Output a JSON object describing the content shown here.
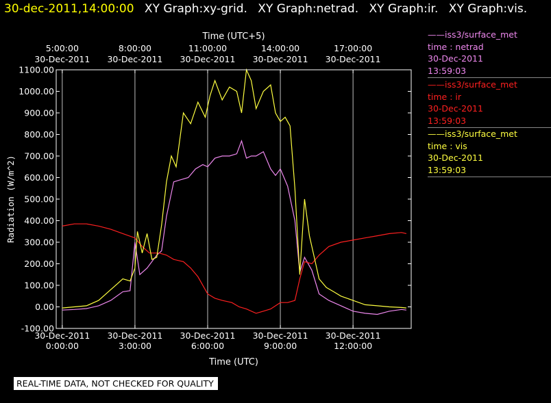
{
  "header": {
    "datetime": "30-dec-2011,14:00:00",
    "graphs": [
      "XY Graph:xy-grid.",
      "XY Graph:netrad.",
      "XY Graph:ir.",
      "XY Graph:vis."
    ]
  },
  "footer": {
    "notice": "REAL-TIME DATA, NOT CHECKED FOR QUALITY"
  },
  "legend": [
    {
      "name": "iss3/surface_met",
      "field": "time : netrad",
      "date": "30-Dec-2011",
      "time": "13:59:03",
      "color": "#ee88ee"
    },
    {
      "name": "iss3/surface_met",
      "field": "time : ir",
      "date": "30-Dec-2011",
      "time": "13:59:03",
      "color": "#ff2020"
    },
    {
      "name": "iss3/surface_met",
      "field": "time : vis",
      "date": "30-Dec-2011",
      "time": "13:59:03",
      "color": "#ffff40"
    }
  ],
  "colors": {
    "header_datetime": "#ffff00",
    "header_text": "#ffffff",
    "axis": "#ffffff",
    "grid": "#c0c0c0"
  },
  "chart_data": {
    "type": "line",
    "xlabel": "Time (UTC)",
    "x2label": "Time (UTC+5)",
    "ylabel": "Radiation (W/m^2)",
    "xlim": [
      -0.25,
      14.4
    ],
    "ylim": [
      -100,
      1100
    ],
    "yticks": [
      -100,
      0,
      100,
      200,
      300,
      400,
      500,
      600,
      700,
      800,
      900,
      1000,
      1100
    ],
    "ytick_labels": [
      "-100.00",
      "0.00",
      "100.00",
      "200.00",
      "300.00",
      "400.00",
      "500.00",
      "600.00",
      "700.00",
      "800.00",
      "900.00",
      "1000.00",
      "1100.00"
    ],
    "xticks": [
      0,
      3,
      6,
      9,
      12
    ],
    "xtick_labels": [
      [
        "30-Dec-2011",
        "0:00:00"
      ],
      [
        "30-Dec-2011",
        "3:00:00"
      ],
      [
        "30-Dec-2011",
        "6:00:00"
      ],
      [
        "30-Dec-2011",
        "9:00:00"
      ],
      [
        "30-Dec-2011",
        "12:00:00"
      ]
    ],
    "x2tick_labels": [
      [
        "5:00:00",
        "30-Dec-2011"
      ],
      [
        "8:00:00",
        "30-Dec-2011"
      ],
      [
        "11:00:00",
        "30-Dec-2011"
      ],
      [
        "14:00:00",
        "30-Dec-2011"
      ],
      [
        "17:00:00",
        "30-Dec-2011"
      ]
    ],
    "grid": true,
    "legend": "right",
    "series": [
      {
        "name": "time : netrad",
        "color": "#ee88ee",
        "x": [
          0,
          0.5,
          1,
          1.5,
          2,
          2.5,
          2.8,
          3.0,
          3.2,
          3.5,
          3.9,
          4.1,
          4.3,
          4.6,
          4.9,
          5.2,
          5.5,
          5.8,
          6.0,
          6.3,
          6.6,
          6.9,
          7.2,
          7.4,
          7.6,
          7.8,
          8.0,
          8.3,
          8.6,
          8.8,
          9.0,
          9.3,
          9.6,
          9.8,
          10.0,
          10.3,
          10.6,
          11.0,
          11.5,
          12.0,
          12.5,
          13.0,
          13.5,
          14.0,
          14.2
        ],
        "y": [
          -15,
          -12,
          -8,
          5,
          30,
          70,
          75,
          300,
          150,
          180,
          240,
          260,
          420,
          580,
          590,
          600,
          640,
          660,
          650,
          690,
          700,
          700,
          710,
          770,
          690,
          700,
          700,
          720,
          640,
          610,
          640,
          560,
          400,
          160,
          230,
          170,
          60,
          30,
          5,
          -20,
          -30,
          -35,
          -20,
          -12,
          -15
        ]
      },
      {
        "name": "time : ir",
        "color": "#ff2020",
        "x": [
          0,
          0.5,
          1,
          1.5,
          2,
          2.5,
          3.0,
          3.3,
          3.6,
          4.0,
          4.3,
          4.6,
          5.0,
          5.3,
          5.6,
          6.0,
          6.3,
          6.6,
          7.0,
          7.3,
          7.6,
          8.0,
          8.3,
          8.6,
          9.0,
          9.3,
          9.6,
          9.8,
          10.0,
          10.3,
          10.6,
          11.0,
          11.5,
          12.0,
          12.5,
          13.0,
          13.5,
          14.0,
          14.2
        ],
        "y": [
          375,
          385,
          385,
          375,
          360,
          340,
          320,
          280,
          250,
          250,
          240,
          220,
          210,
          180,
          140,
          60,
          40,
          30,
          20,
          0,
          -10,
          -30,
          -20,
          -10,
          20,
          20,
          30,
          130,
          210,
          200,
          240,
          280,
          300,
          310,
          320,
          330,
          340,
          345,
          340
        ]
      },
      {
        "name": "time : vis",
        "color": "#ffff40",
        "x": [
          0,
          0.5,
          1,
          1.5,
          2,
          2.3,
          2.5,
          2.8,
          3.0,
          3.1,
          3.3,
          3.5,
          3.7,
          3.9,
          4.1,
          4.3,
          4.5,
          4.7,
          5.0,
          5.3,
          5.6,
          5.9,
          6.1,
          6.3,
          6.6,
          6.9,
          7.2,
          7.4,
          7.6,
          7.8,
          8.0,
          8.3,
          8.6,
          8.8,
          9.0,
          9.2,
          9.4,
          9.6,
          9.8,
          10.0,
          10.2,
          10.4,
          10.6,
          10.9,
          11.2,
          11.5,
          12.0,
          12.5,
          13.0,
          13.5,
          14.0,
          14.2
        ],
        "y": [
          -5,
          0,
          5,
          30,
          80,
          110,
          130,
          120,
          180,
          350,
          250,
          340,
          220,
          230,
          380,
          580,
          700,
          650,
          900,
          850,
          950,
          880,
          980,
          1050,
          960,
          1020,
          1000,
          900,
          1100,
          1050,
          920,
          1000,
          1030,
          900,
          860,
          880,
          840,
          550,
          150,
          500,
          330,
          230,
          130,
          90,
          70,
          50,
          30,
          10,
          5,
          0,
          -3,
          -5
        ]
      }
    ]
  }
}
